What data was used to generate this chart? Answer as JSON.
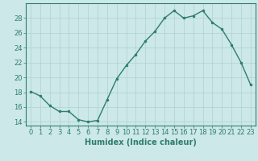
{
  "x": [
    0,
    1,
    2,
    3,
    4,
    5,
    6,
    7,
    8,
    9,
    10,
    11,
    12,
    13,
    14,
    15,
    16,
    17,
    18,
    19,
    20,
    21,
    22,
    23
  ],
  "y": [
    18.1,
    17.5,
    16.2,
    15.4,
    15.4,
    14.3,
    14.0,
    14.2,
    17.0,
    19.8,
    21.6,
    23.1,
    24.9,
    26.2,
    28.0,
    29.0,
    28.0,
    28.3,
    29.0,
    27.4,
    26.5,
    24.4,
    22.0,
    19.0
  ],
  "xlabel": "Humidex (Indice chaleur)",
  "xlim": [
    -0.5,
    23.5
  ],
  "ylim": [
    13.5,
    30.0
  ],
  "yticks": [
    14,
    16,
    18,
    20,
    22,
    24,
    26,
    28
  ],
  "xticks": [
    0,
    1,
    2,
    3,
    4,
    5,
    6,
    7,
    8,
    9,
    10,
    11,
    12,
    13,
    14,
    15,
    16,
    17,
    18,
    19,
    20,
    21,
    22,
    23
  ],
  "line_color": "#2e7d6e",
  "marker_color": "#2e7d6e",
  "bg_color": "#cce8e8",
  "grid_color": "#b0d0d0",
  "tick_color": "#2e7d6e",
  "label_color": "#2e7d6e",
  "tick_fontsize": 6.0,
  "xlabel_fontsize": 7.0
}
